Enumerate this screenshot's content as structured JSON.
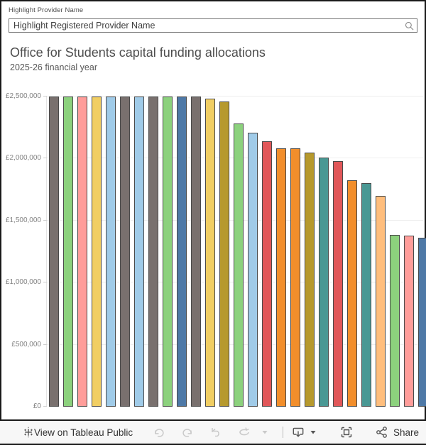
{
  "filter": {
    "label": "Highlight Provider Name",
    "value": "Highlight Registered Provider Name"
  },
  "chart_data": {
    "type": "bar",
    "title": "Office for Students capital funding allocations",
    "subtitle": "2025-26 financial year",
    "xlabel": "",
    "ylabel": "",
    "ylim": [
      0,
      2500000
    ],
    "grid": true,
    "legend": false,
    "x_tick_labels_visible": false,
    "y_ticks": [
      {
        "value": 0,
        "label": "£0"
      },
      {
        "value": 500000,
        "label": "£500,000"
      },
      {
        "value": 1000000,
        "label": "£1,000,000"
      },
      {
        "value": 1500000,
        "label": "£1,500,000"
      },
      {
        "value": 2000000,
        "label": "£2,000,000"
      },
      {
        "value": 2500000,
        "label": "£2,500,000"
      }
    ],
    "values": [
      2500000,
      2500000,
      2500000,
      2500000,
      2500000,
      2500000,
      2500000,
      2500000,
      2500000,
      2500000,
      2500000,
      2480000,
      2455000,
      2280000,
      2205000,
      2135000,
      2080000,
      2080000,
      2045000,
      2005000,
      1975000,
      1825000,
      1800000,
      1700000,
      1385000,
      1375000,
      1360000
    ],
    "colors": [
      "#79706E",
      "#8CD17D",
      "#FF9D9A",
      "#F1CE63",
      "#A0CBE8",
      "#79706E",
      "#A0CBE8",
      "#79706E",
      "#8CD17D",
      "#4E79A7",
      "#79706E",
      "#F1CE63",
      "#B6992D",
      "#8CD17D",
      "#A0CBE8",
      "#E15759",
      "#F28E2B",
      "#F28E2B",
      "#B6992D",
      "#499894",
      "#E15759",
      "#F28E2B",
      "#499894",
      "#FFBE7D",
      "#8CD17D",
      "#FF9D9A",
      "#4E79A7"
    ],
    "bar_border_color": "#4a4a4a"
  },
  "toolbar": {
    "view_label": "View on Tableau Public",
    "share_label": "Share",
    "icons": [
      "tableau-logo",
      "undo",
      "redo",
      "revert",
      "refresh",
      "caret-down",
      "download",
      "caret-down",
      "fullscreen",
      "share"
    ]
  }
}
